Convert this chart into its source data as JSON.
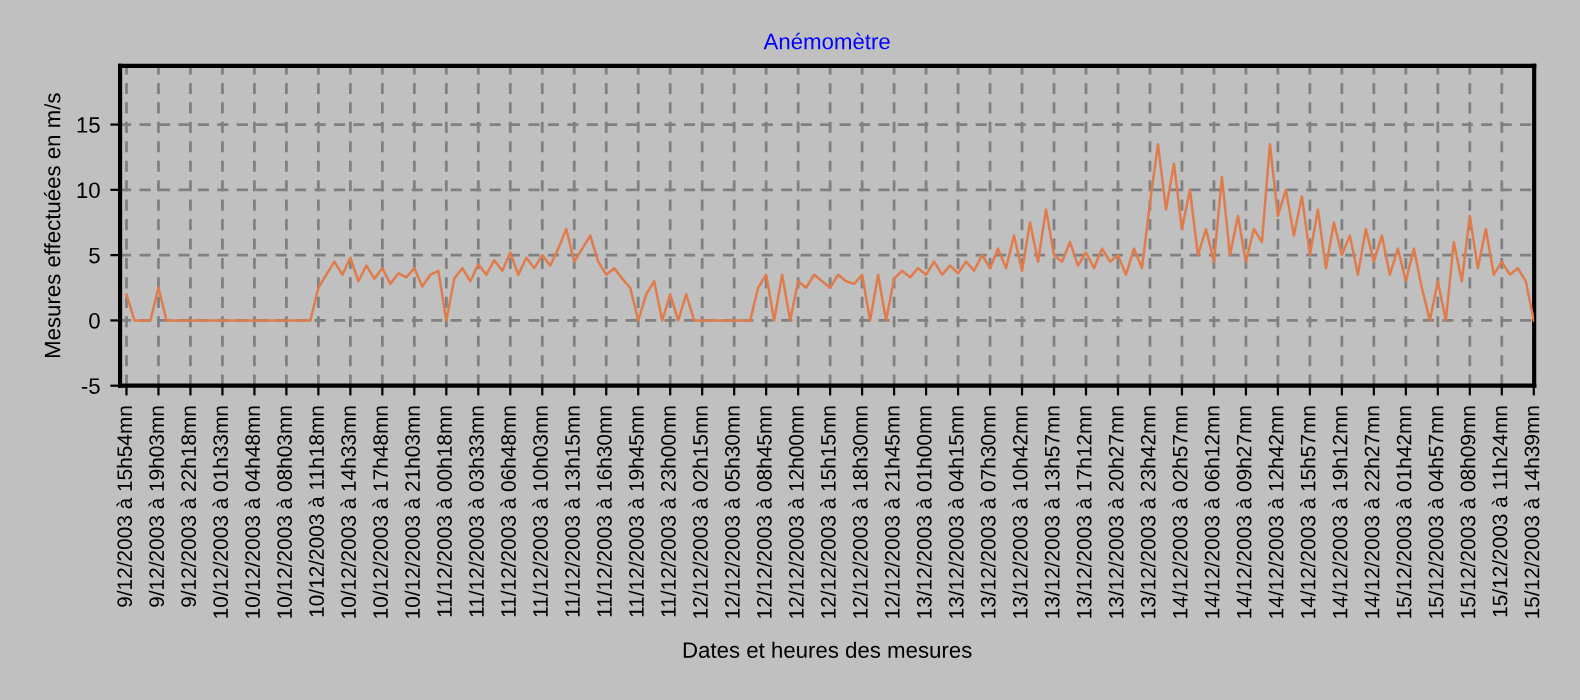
{
  "chart_data": {
    "type": "line",
    "title": "Anémomètre",
    "xlabel": "Dates et heures des mesures",
    "ylabel": "Mesures effectuées en m/s",
    "categories": [
      "9/12/2003 à 15h54mn",
      null,
      null,
      null,
      "9/12/2003 à 19h03mn",
      null,
      null,
      null,
      "9/12/2003 à 22h18mn",
      null,
      null,
      null,
      "10/12/2003 à 01h33mn",
      null,
      null,
      null,
      "10/12/2003 à 04h48mn",
      null,
      null,
      null,
      "10/12/2003 à 08h03mn",
      null,
      null,
      null,
      "10/12/2003 à 11h18mn",
      null,
      null,
      null,
      "10/12/2003 à 14h33mn",
      null,
      null,
      null,
      "10/12/2003 à 17h48mn",
      null,
      null,
      null,
      "10/12/2003 à 21h03mn",
      null,
      null,
      null,
      "11/12/2003 à 00h18mn",
      null,
      null,
      null,
      "11/12/2003 à 03h33mn",
      null,
      null,
      null,
      "11/12/2003 à 06h48mn",
      null,
      null,
      null,
      "11/12/2003 à 10h03mn",
      null,
      null,
      null,
      "11/12/2003 à 13h15mn",
      null,
      null,
      null,
      "11/12/2003 à 16h30mn",
      null,
      null,
      null,
      "11/12/2003 à 19h45mn",
      null,
      null,
      null,
      "11/12/2003 à 23h00mn",
      null,
      null,
      null,
      "12/12/2003 à 02h15mn",
      null,
      null,
      null,
      "12/12/2003 à 05h30mn",
      null,
      null,
      null,
      "12/12/2003 à 08h45mn",
      null,
      null,
      null,
      "12/12/2003 à 12h00mn",
      null,
      null,
      null,
      "12/12/2003 à 15h15mn",
      null,
      null,
      null,
      "12/12/2003 à 18h30mn",
      null,
      null,
      null,
      "12/12/2003 à 21h45mn",
      null,
      null,
      null,
      "13/12/2003 à 01h00mn",
      null,
      null,
      null,
      "13/12/2003 à 04h15mn",
      null,
      null,
      null,
      "13/12/2003 à 07h30mn",
      null,
      null,
      null,
      "13/12/2003 à 10h42mn",
      null,
      null,
      null,
      "13/12/2003 à 13h57mn",
      null,
      null,
      null,
      "13/12/2003 à 17h12mn",
      null,
      null,
      null,
      "13/12/2003 à 20h27mn",
      null,
      null,
      null,
      "13/12/2003 à 23h42mn",
      null,
      null,
      null,
      "14/12/2003 à 02h57mn",
      null,
      null,
      null,
      "14/12/2003 à 06h12mn",
      null,
      null,
      null,
      "14/12/2003 à 09h27mn",
      null,
      null,
      null,
      "14/12/2003 à 12h42mn",
      null,
      null,
      null,
      "14/12/2003 à 15h57mn",
      null,
      null,
      null,
      "14/12/2003 à 19h12mn",
      null,
      null,
      null,
      "14/12/2003 à 22h27mn",
      null,
      null,
      null,
      "15/12/2003 à 01h42mn",
      null,
      null,
      null,
      "15/12/2003 à 04h57mn",
      null,
      null,
      null,
      "15/12/2003 à 08h09mn",
      null,
      null,
      null,
      "15/12/2003 à 11h24mn",
      null,
      null,
      null,
      "15/12/2003 à 14h39mn"
    ],
    "series": [
      {
        "color": "#e07c4c",
        "values": [
          2,
          0,
          0,
          0,
          2.5,
          0,
          0,
          0,
          0,
          0,
          0,
          0,
          0,
          0,
          0,
          0,
          0,
          0,
          0,
          0,
          0,
          0,
          0,
          0,
          2.5,
          3.5,
          4.5,
          3.5,
          4.8,
          3,
          4.2,
          3.2,
          4,
          2.8,
          3.6,
          3.3,
          4,
          2.6,
          3.5,
          3.8,
          0,
          3.2,
          4,
          3,
          4.3,
          3.5,
          4.6,
          3.8,
          5.2,
          3.5,
          4.8,
          4,
          5,
          4.2,
          5.5,
          7,
          4.5,
          5.5,
          6.5,
          4.5,
          3.5,
          4,
          3.2,
          2.5,
          0,
          2,
          3,
          0,
          2,
          0,
          2,
          0,
          0,
          0,
          0,
          0,
          0,
          0,
          0,
          2.5,
          3.5,
          0,
          3.5,
          0,
          3,
          2.5,
          3.5,
          3,
          2.5,
          3.5,
          3,
          2.8,
          3.5,
          0,
          3.5,
          0,
          3.2,
          3.8,
          3.3,
          4,
          3.5,
          4.5,
          3.5,
          4.2,
          3.6,
          4.5,
          3.8,
          5,
          4,
          5.5,
          4,
          6.5,
          3.8,
          7.5,
          4.5,
          8.5,
          5,
          4.5,
          6,
          4.2,
          5.2,
          4,
          5.5,
          4.5,
          5,
          3.5,
          5.5,
          4,
          9,
          13.5,
          8.5,
          12,
          7,
          10,
          5,
          7,
          4.5,
          11,
          5,
          8,
          4.5,
          7,
          6,
          13.5,
          8,
          10,
          6.5,
          9.5,
          5,
          8.5,
          4,
          7.5,
          5,
          6.5,
          3.5,
          7,
          4.5,
          6.5,
          3.5,
          5.5,
          3,
          5.5,
          2.5,
          0,
          3,
          0,
          6,
          3,
          8,
          4,
          7,
          3.5,
          4.5,
          3.5,
          4,
          3,
          0
        ]
      }
    ],
    "ylim": [
      -5,
      19.5
    ],
    "yticks": [
      -5,
      0,
      5,
      10,
      15
    ],
    "grid": true,
    "line_style": "solid"
  }
}
